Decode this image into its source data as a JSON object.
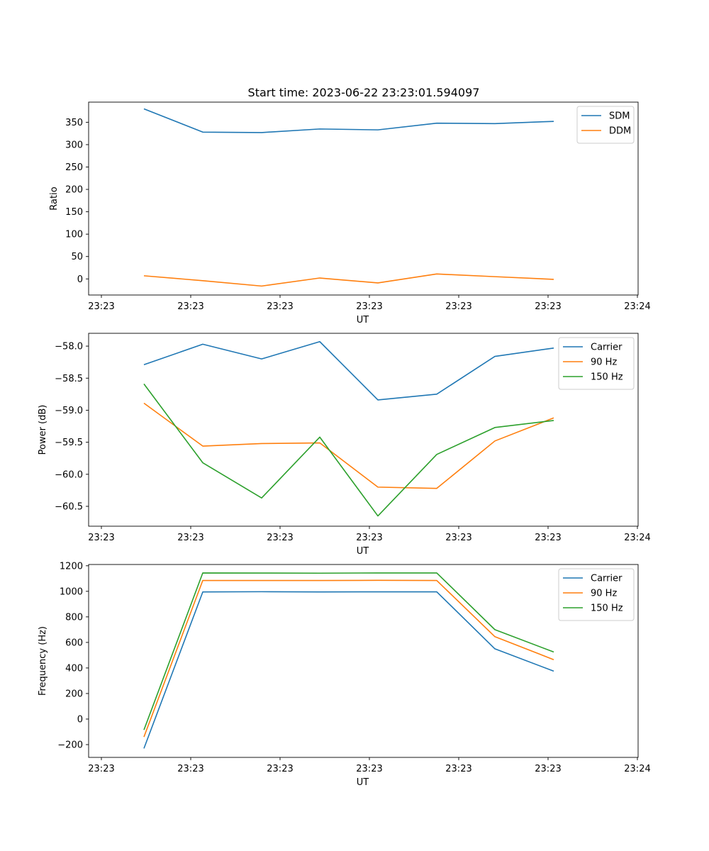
{
  "figure": {
    "title": "Start time: 2023-06-22 23:23:01.594097"
  },
  "colors": {
    "blue": "#1f77b4",
    "orange": "#ff7f0e",
    "green": "#2ca02c"
  },
  "chart_data": [
    {
      "type": "line",
      "title": "Start time: 2023-06-22 23:23:01.594097",
      "xlabel": "UT",
      "ylabel": "Ratio",
      "x_tick_labels": [
        "23:23",
        "23:23",
        "23:23",
        "23:23",
        "23:23",
        "23:23",
        "23:24"
      ],
      "y_ticks": [
        0,
        50,
        100,
        150,
        200,
        250,
        300,
        350
      ],
      "ylim": [
        -36,
        395
      ],
      "legend_position": "top-right",
      "series": [
        {
          "name": "SDM",
          "color": "blue",
          "values": [
            380,
            328,
            327,
            335,
            333,
            348,
            347,
            352
          ]
        },
        {
          "name": "DDM",
          "color": "orange",
          "values": [
            7,
            -4,
            -16,
            2,
            -9,
            11,
            5,
            -1
          ]
        }
      ]
    },
    {
      "type": "line",
      "xlabel": "UT",
      "ylabel": "Power (dB)",
      "x_tick_labels": [
        "23:23",
        "23:23",
        "23:23",
        "23:23",
        "23:23",
        "23:23",
        "23:24"
      ],
      "y_ticks": [
        -58.0,
        -58.5,
        -59.0,
        -59.5,
        -60.0,
        -60.5
      ],
      "y_tick_labels": [
        "−58.0",
        "−58.5",
        "−59.0",
        "−59.5",
        "−60.0",
        "−60.5"
      ],
      "ylim": [
        -60.81,
        -57.8
      ],
      "legend_position": "top-right",
      "series": [
        {
          "name": "Carrier",
          "color": "blue",
          "values": [
            -58.29,
            -57.97,
            -58.2,
            -57.93,
            -58.84,
            -58.75,
            -58.16,
            -58.03
          ]
        },
        {
          "name": "90 Hz",
          "color": "orange",
          "values": [
            -58.89,
            -59.56,
            -59.52,
            -59.51,
            -60.2,
            -60.22,
            -59.48,
            -59.12
          ]
        },
        {
          "name": "150 Hz",
          "color": "green",
          "values": [
            -58.59,
            -59.82,
            -60.37,
            -59.42,
            -60.65,
            -59.69,
            -59.27,
            -59.16
          ]
        }
      ]
    },
    {
      "type": "line",
      "xlabel": "UT",
      "ylabel": "Frequency (Hz)",
      "x_tick_labels": [
        "23:23",
        "23:23",
        "23:23",
        "23:23",
        "23:23",
        "23:23",
        "23:24"
      ],
      "y_ticks": [
        -200,
        0,
        200,
        400,
        600,
        800,
        1000,
        1200
      ],
      "y_tick_labels": [
        "−200",
        "0",
        "200",
        "400",
        "600",
        "800",
        "1000",
        "1200"
      ],
      "ylim": [
        -300,
        1210
      ],
      "legend_position": "top-right",
      "series": [
        {
          "name": "Carrier",
          "color": "blue",
          "values": [
            -230,
            995,
            997,
            995,
            996,
            996,
            550,
            375
          ]
        },
        {
          "name": "90 Hz",
          "color": "orange",
          "values": [
            -140,
            1085,
            1085,
            1085,
            1086,
            1085,
            645,
            465
          ]
        },
        {
          "name": "150 Hz",
          "color": "green",
          "values": [
            -85,
            1144,
            1143,
            1142,
            1144,
            1144,
            700,
            525
          ]
        }
      ]
    }
  ]
}
